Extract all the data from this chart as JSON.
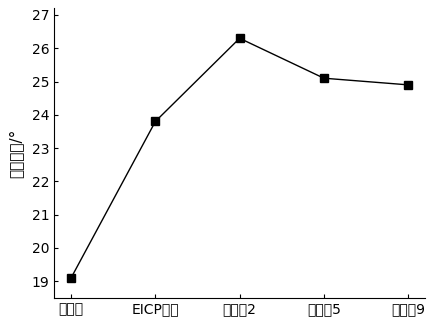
{
  "categories": [
    "未加固",
    "EICP加固",
    "实施例2",
    "实施例5",
    "实施例9"
  ],
  "values": [
    19.1,
    23.8,
    26.3,
    25.1,
    24.9
  ],
  "ylabel": "内摩擦角/°",
  "ylim": [
    18.5,
    27.2
  ],
  "yticks": [
    19,
    20,
    21,
    22,
    23,
    24,
    25,
    26,
    27
  ],
  "line_color": "#000000",
  "marker": "s",
  "marker_size": 6,
  "line_style": "-",
  "line_width": 1.0,
  "bg_color": "#ffffff",
  "font_size_tick": 10,
  "font_size_label": 11
}
